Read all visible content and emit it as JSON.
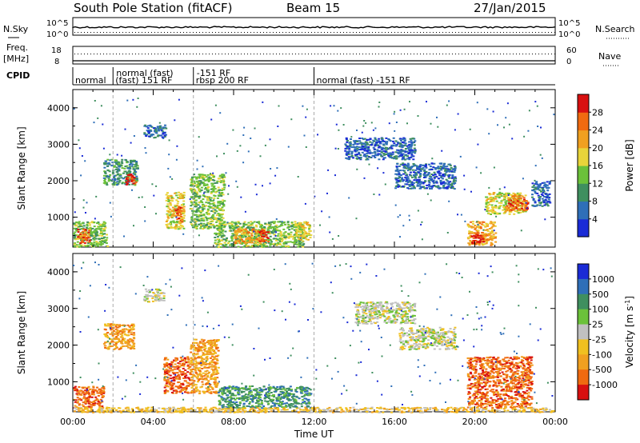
{
  "header": {
    "station": "South Pole Station (fitACF)",
    "beam": "Beam 15",
    "date": "27/Jan/2015"
  },
  "strip_labels": {
    "nsky": "N.Sky",
    "freq_line1": "Freq.",
    "freq_line2": "[MHz]",
    "cpid": "CPID",
    "nsearch": "N.Search",
    "nave": "Nave",
    "nsky_tick_top": "10^5",
    "nsky_tick_bottom": "10^0",
    "nsearch_tick_top": "10^5",
    "nsearch_tick_bottom": "10^0",
    "freq_tick_top": "18",
    "freq_tick_bottom": "8",
    "nave_tick_top": "60",
    "nave_tick_bottom": "0"
  },
  "cpid_segments": [
    {
      "label_top": "",
      "label_bottom": "normal",
      "start_hour": 0.0
    },
    {
      "label_top": "normal (fast)",
      "label_bottom": "(fast) 151 RF",
      "start_hour": 2.0
    },
    {
      "label_top": "-151 RF",
      "label_bottom": "rbsp 200 RF",
      "start_hour": 6.0
    },
    {
      "label_top": "",
      "label_bottom": "normal (fast) -151 RF",
      "start_hour": 12.0
    }
  ],
  "chart_data": [
    {
      "type": "heatmap",
      "name": "Power",
      "ylabel": "Slant Range [km]",
      "xlabel": "",
      "xlim": [
        0,
        24
      ],
      "ylim": [
        180,
        4500
      ],
      "yticks": [
        "1000",
        "2000",
        "3000",
        "4000"
      ],
      "colorbar_label": "Power [dB]",
      "colorbar_ticks": [
        "4",
        "8",
        "12",
        "16",
        "20",
        "24",
        "28"
      ],
      "colorbar_colors": [
        "#1a2bd6",
        "#2f6fb8",
        "#3f8f5f",
        "#6bc13a",
        "#e8d43a",
        "#f0a020",
        "#f06a10",
        "#d81010"
      ],
      "regions": [
        {
          "t0": 0.0,
          "t1": 1.7,
          "r0": 200,
          "r1": 900,
          "level": 3
        },
        {
          "t0": 0.2,
          "t1": 0.8,
          "r0": 300,
          "r1": 700,
          "level": 6
        },
        {
          "t0": 1.5,
          "t1": 3.2,
          "r0": 1900,
          "r1": 2600,
          "level": 2
        },
        {
          "t0": 2.6,
          "t1": 3.1,
          "r0": 1900,
          "r1": 2200,
          "level": 7
        },
        {
          "t0": 3.5,
          "t1": 4.6,
          "r0": 3200,
          "r1": 3550,
          "level": 1
        },
        {
          "t0": 4.6,
          "t1": 5.5,
          "r0": 700,
          "r1": 1700,
          "level": 4
        },
        {
          "t0": 5.0,
          "t1": 5.4,
          "r0": 900,
          "r1": 1300,
          "level": 6
        },
        {
          "t0": 5.8,
          "t1": 7.5,
          "r0": 700,
          "r1": 2200,
          "level": 3
        },
        {
          "t0": 7.0,
          "t1": 11.5,
          "r0": 200,
          "r1": 900,
          "level": 3
        },
        {
          "t0": 8.0,
          "t1": 9.5,
          "r0": 300,
          "r1": 700,
          "level": 5
        },
        {
          "t0": 9.2,
          "t1": 9.7,
          "r0": 350,
          "r1": 650,
          "level": 7
        },
        {
          "t0": 11.0,
          "t1": 11.8,
          "r0": 400,
          "r1": 900,
          "level": 4
        },
        {
          "t0": 13.5,
          "t1": 17.0,
          "r0": 2600,
          "r1": 3200,
          "level": 1
        },
        {
          "t0": 16.0,
          "t1": 19.0,
          "r0": 1800,
          "r1": 2500,
          "level": 1
        },
        {
          "t0": 19.6,
          "t1": 21.0,
          "r0": 250,
          "r1": 900,
          "level": 5
        },
        {
          "t0": 19.8,
          "t1": 20.4,
          "r0": 300,
          "r1": 600,
          "level": 7
        },
        {
          "t0": 20.5,
          "t1": 22.5,
          "r0": 1100,
          "r1": 1700,
          "level": 4
        },
        {
          "t0": 21.5,
          "t1": 22.6,
          "r0": 1200,
          "r1": 1600,
          "level": 6
        },
        {
          "t0": 22.8,
          "t1": 23.7,
          "r0": 1300,
          "r1": 2000,
          "level": 1
        }
      ]
    },
    {
      "type": "heatmap",
      "name": "Velocity",
      "ylabel": "Slant Range [km]",
      "xlabel": "Time UT",
      "xlim": [
        0,
        24
      ],
      "ylim": [
        180,
        4500
      ],
      "yticks": [
        "1000",
        "2000",
        "3000",
        "4000"
      ],
      "xticks": [
        "00:00",
        "04:00",
        "08:00",
        "12:00",
        "16:00",
        "20:00",
        "00:00"
      ],
      "colorbar_label": "Velocity [m s^-1]",
      "colorbar_ticks": [
        "1000",
        "500",
        "100",
        "25",
        "-25",
        "-100",
        "-500",
        "-1000"
      ],
      "colorbar_colors": [
        "#1a2bd6",
        "#2f6fb8",
        "#3f8f5f",
        "#6bc13a",
        "#c0c0c0",
        "#f0c020",
        "#f0a020",
        "#f06a10",
        "#d81010"
      ],
      "regions": [
        {
          "t0": 0.0,
          "t1": 1.5,
          "r0": 300,
          "r1": 900,
          "level": 7
        },
        {
          "t0": 1.5,
          "t1": 3.0,
          "r0": 1900,
          "r1": 2600,
          "level": 6
        },
        {
          "t0": 3.5,
          "t1": 4.5,
          "r0": 3200,
          "r1": 3550,
          "level": 4
        },
        {
          "t0": 4.5,
          "t1": 5.8,
          "r0": 700,
          "r1": 1700,
          "level": 7
        },
        {
          "t0": 5.8,
          "t1": 7.2,
          "r0": 700,
          "r1": 2200,
          "level": 6
        },
        {
          "t0": 7.2,
          "t1": 11.8,
          "r0": 300,
          "r1": 900,
          "level": 2
        },
        {
          "t0": 14.0,
          "t1": 17.0,
          "r0": 2600,
          "r1": 3200,
          "level": 4
        },
        {
          "t0": 16.2,
          "t1": 19.0,
          "r0": 1900,
          "r1": 2500,
          "level": 4
        },
        {
          "t0": 19.6,
          "t1": 22.8,
          "r0": 300,
          "r1": 1700,
          "level": 7
        },
        {
          "t0": 0.0,
          "t1": 24.0,
          "r0": 180,
          "r1": 320,
          "level": 5
        }
      ]
    }
  ]
}
